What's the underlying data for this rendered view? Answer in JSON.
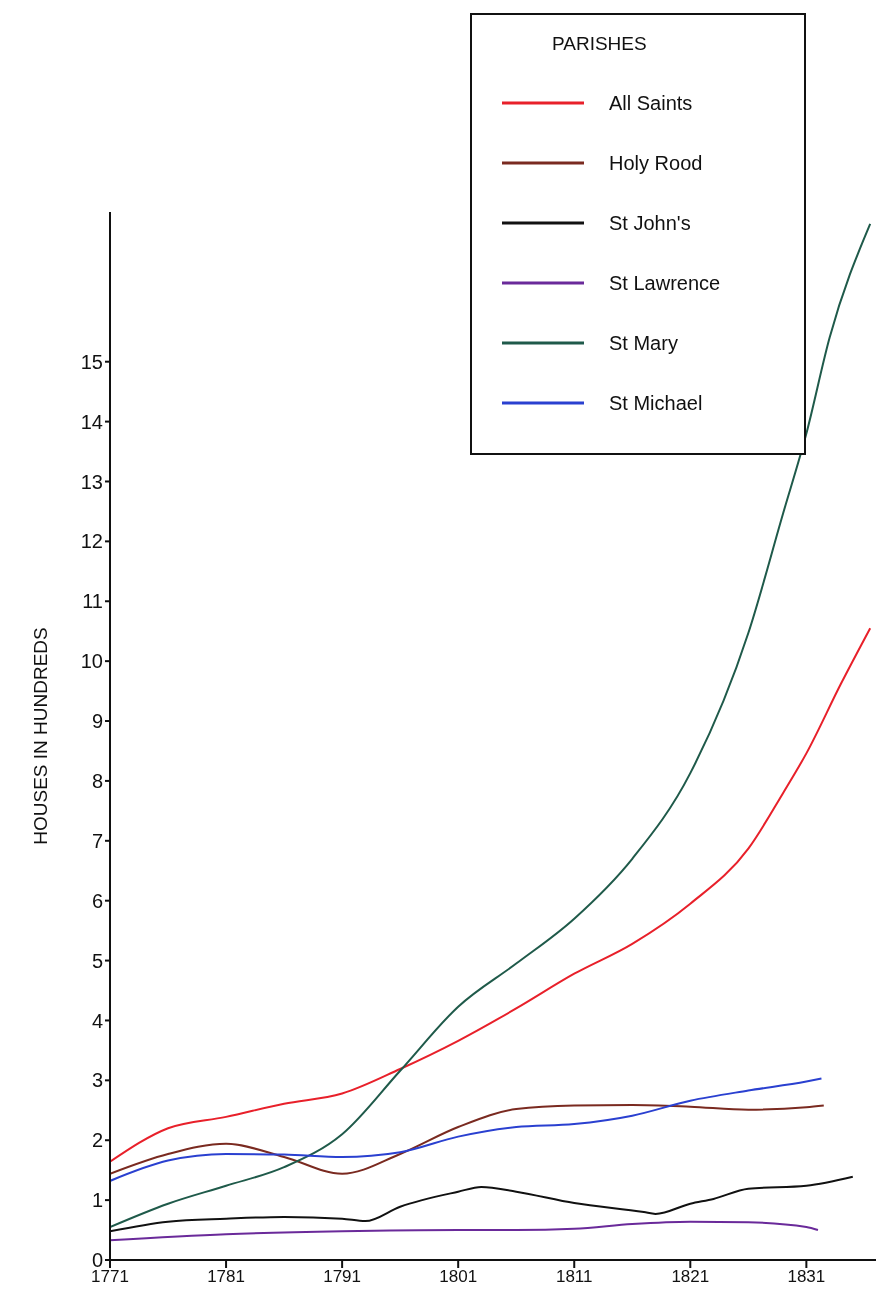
{
  "chart_data": {
    "type": "line",
    "ylabel": "HOUSES IN HUNDREDS",
    "legend_title": "PARISHES",
    "legend": "top right",
    "grid": false,
    "marker": "none",
    "line_style": "solid",
    "xlim": [
      1771,
      1837
    ],
    "xticks": [
      1771,
      1781,
      1791,
      1801,
      1811,
      1821,
      1831
    ],
    "ylim": [
      0,
      17.5
    ],
    "yticks": [
      0,
      1,
      2,
      3,
      4,
      5,
      6,
      7,
      8,
      9,
      10,
      11,
      12,
      13,
      14,
      15
    ],
    "series": [
      {
        "name": "All Saints",
        "color": "#e8202a",
        "x": [
          1771,
          1776,
          1781,
          1786,
          1791,
          1796,
          1801,
          1806,
          1811,
          1816,
          1821,
          1826,
          1829,
          1831,
          1834,
          1836.5
        ],
        "values": [
          1.64,
          2.2,
          2.39,
          2.61,
          2.78,
          3.19,
          3.66,
          4.2,
          4.78,
          5.28,
          5.95,
          6.87,
          7.8,
          8.46,
          9.63,
          10.55
        ]
      },
      {
        "name": "Holy Rood",
        "color": "#7a2a20",
        "x": [
          1771,
          1776,
          1781,
          1786,
          1791,
          1796,
          1801,
          1806,
          1811,
          1816,
          1821,
          1826,
          1831,
          1832.5
        ],
        "values": [
          1.44,
          1.77,
          1.94,
          1.72,
          1.44,
          1.77,
          2.22,
          2.52,
          2.58,
          2.59,
          2.56,
          2.51,
          2.55,
          2.58
        ]
      },
      {
        "name": "St John's",
        "color": "#111111",
        "x": [
          1771,
          1776,
          1781,
          1786,
          1791,
          1793,
          1796,
          1801,
          1803,
          1806,
          1811,
          1817,
          1818,
          1821,
          1823,
          1826,
          1831,
          1835
        ],
        "values": [
          0.48,
          0.64,
          0.69,
          0.72,
          0.69,
          0.65,
          0.89,
          1.14,
          1.22,
          1.14,
          0.95,
          0.8,
          0.77,
          0.94,
          1.02,
          1.19,
          1.24,
          1.39
        ]
      },
      {
        "name": "St Lawrence",
        "color": "#6a2a9a",
        "x": [
          1771,
          1781,
          1791,
          1801,
          1806,
          1811,
          1816,
          1821,
          1826,
          1831,
          1832
        ],
        "values": [
          0.33,
          0.43,
          0.48,
          0.5,
          0.5,
          0.52,
          0.6,
          0.64,
          0.63,
          0.55,
          0.5
        ]
      },
      {
        "name": "St Mary",
        "color": "#1f5a4a",
        "x": [
          1771,
          1776,
          1781,
          1786,
          1791,
          1796,
          1801,
          1806,
          1811,
          1816,
          1821,
          1826,
          1829,
          1831,
          1833,
          1836.5
        ],
        "values": [
          0.55,
          0.94,
          1.24,
          1.55,
          2.1,
          3.16,
          4.23,
          4.95,
          5.7,
          6.7,
          8.13,
          10.47,
          12.47,
          13.8,
          15.4,
          17.3
        ]
      },
      {
        "name": "St Michael",
        "color": "#2a40d0",
        "x": [
          1771,
          1776,
          1781,
          1786,
          1791,
          1796,
          1801,
          1806,
          1811,
          1816,
          1821,
          1826,
          1831,
          1832.3
        ],
        "values": [
          1.32,
          1.66,
          1.77,
          1.76,
          1.72,
          1.8,
          2.06,
          2.22,
          2.27,
          2.41,
          2.66,
          2.83,
          2.98,
          3.03
        ]
      }
    ]
  }
}
